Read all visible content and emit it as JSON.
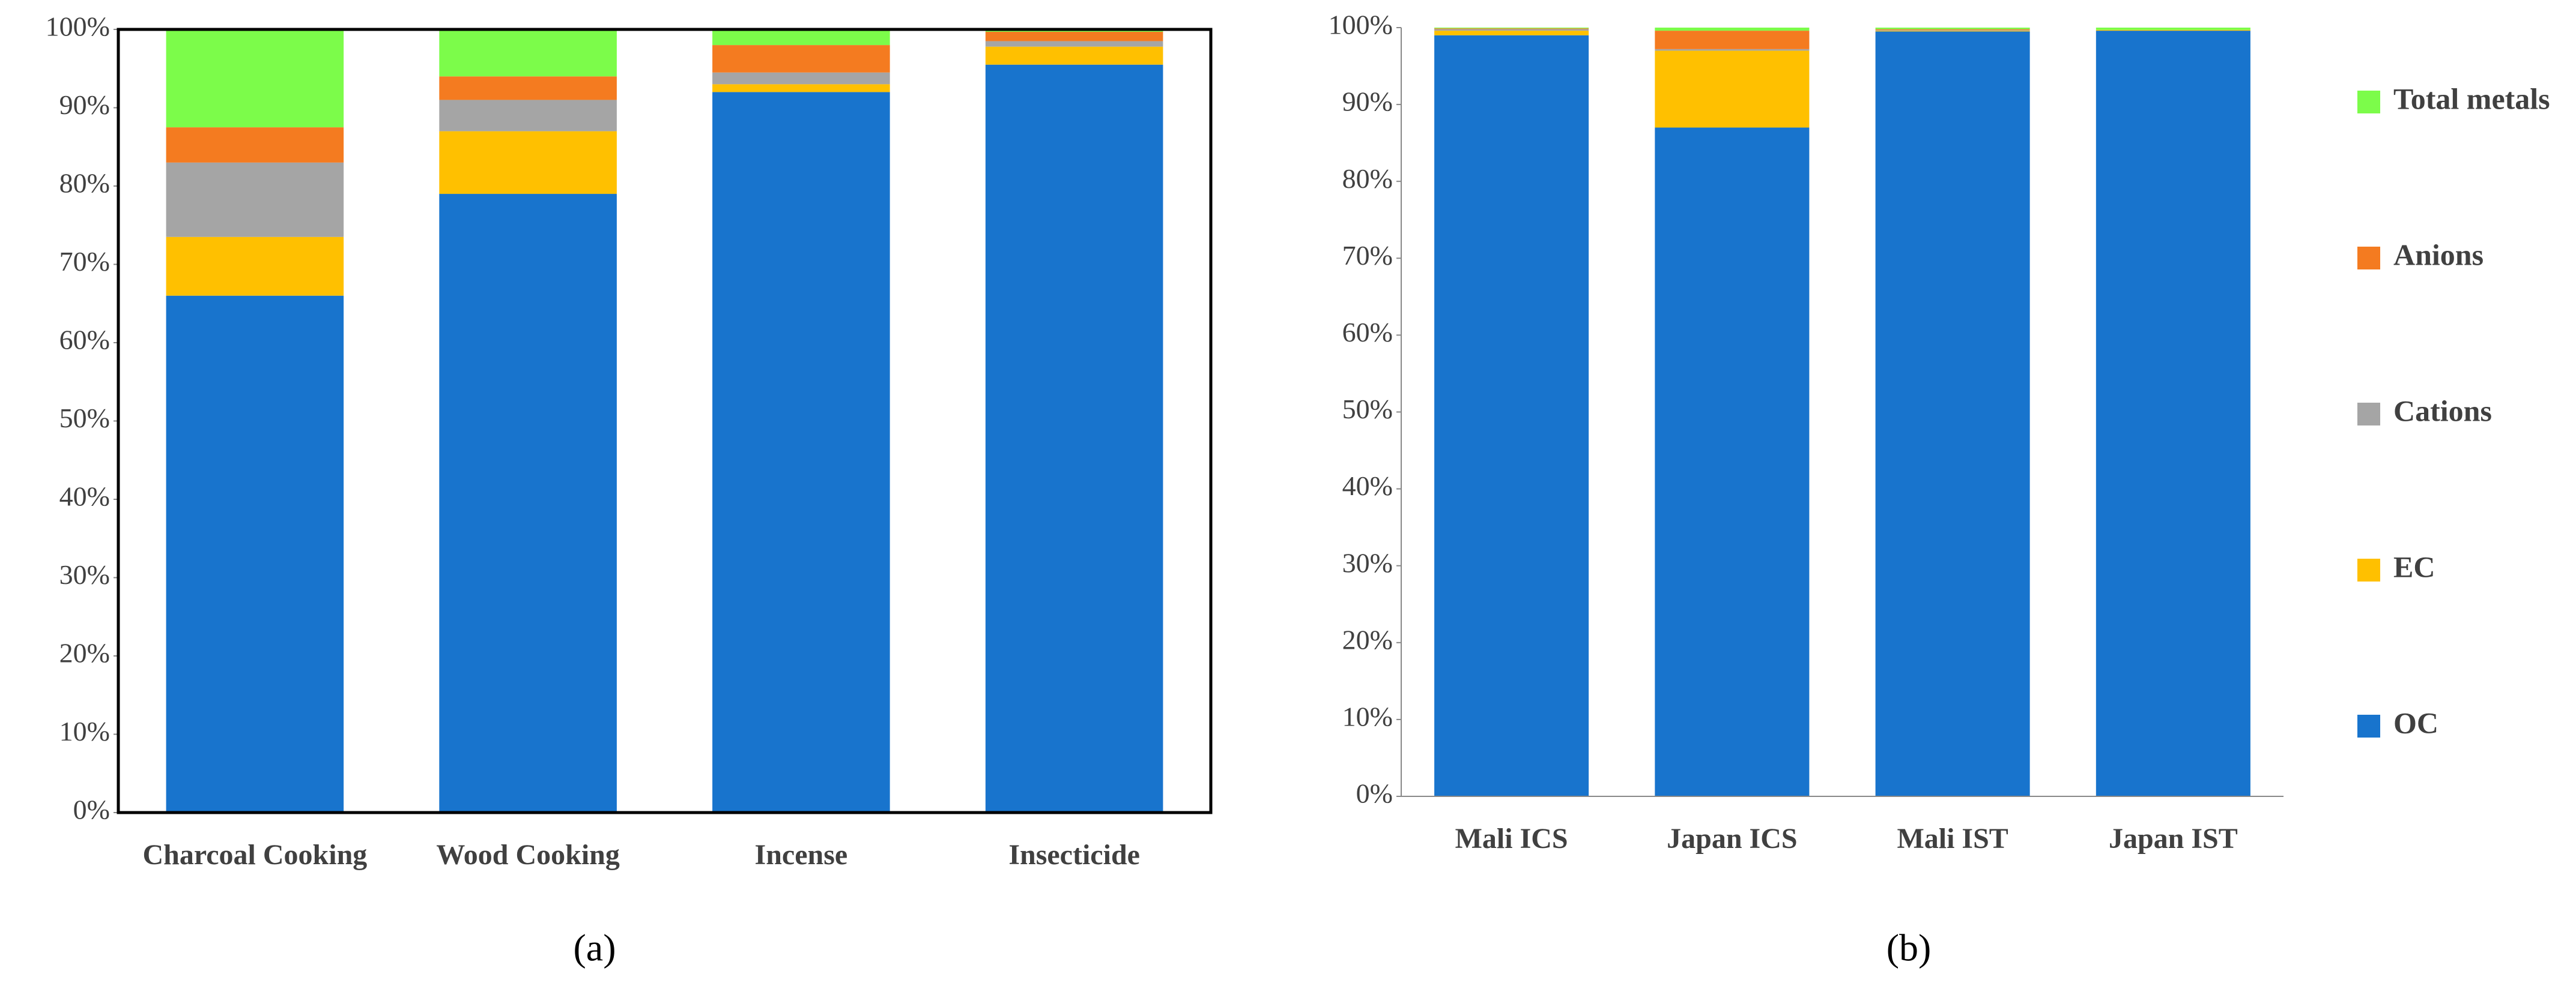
{
  "chart_data": [
    {
      "type": "stacked_bar",
      "caption": "(a)",
      "frame": true,
      "legend": false,
      "categories": [
        "Charcoal Cooking",
        "Wood Cooking",
        "Incense",
        "Insecticide"
      ],
      "series": [
        {
          "name": "OC",
          "color": "#1874cd",
          "values": [
            66,
            79,
            92,
            95.5
          ]
        },
        {
          "name": "EC",
          "color": "#ffc000",
          "values": [
            7.5,
            8,
            1,
            2.3
          ]
        },
        {
          "name": "Cations",
          "color": "#a5a5a5",
          "values": [
            9.5,
            4,
            1.5,
            0.7
          ]
        },
        {
          "name": "Anions",
          "color": "#f47b20",
          "values": [
            4.5,
            3,
            3.5,
            1.2
          ]
        },
        {
          "name": "Total metals",
          "color": "#7cfc4a",
          "values": [
            12.5,
            6,
            2,
            0.3
          ]
        }
      ],
      "ylim": [
        0,
        100
      ],
      "yticks": [
        {
          "value": 0,
          "label": "0%"
        },
        {
          "value": 10,
          "label": "10%"
        },
        {
          "value": 20,
          "label": "20%"
        },
        {
          "value": 30,
          "label": "30%"
        },
        {
          "value": 40,
          "label": "40%"
        },
        {
          "value": 50,
          "label": "50%"
        },
        {
          "value": 60,
          "label": "60%"
        },
        {
          "value": 70,
          "label": "70%"
        },
        {
          "value": 80,
          "label": "80%"
        },
        {
          "value": 90,
          "label": "90%"
        },
        {
          "value": 100,
          "label": "100%"
        }
      ]
    },
    {
      "type": "stacked_bar",
      "caption": "(b)",
      "frame": false,
      "legend": "right",
      "categories": [
        "Mali ICS",
        "Japan ICS",
        "Mali IST",
        "Japan IST"
      ],
      "series": [
        {
          "name": "OC",
          "color": "#1874cd",
          "values": [
            99,
            87,
            99.5,
            99.6
          ]
        },
        {
          "name": "EC",
          "color": "#ffc000",
          "values": [
            0.6,
            10,
            0.1,
            0.1
          ]
        },
        {
          "name": "Cations",
          "color": "#a5a5a5",
          "values": [
            0.2,
            0.2,
            0.1,
            0
          ]
        },
        {
          "name": "Anions",
          "color": "#f47b20",
          "values": [
            0.1,
            2.4,
            0.1,
            0
          ]
        },
        {
          "name": "Total metals",
          "color": "#7cfc4a",
          "values": [
            0.1,
            0.4,
            0.2,
            0.3
          ]
        }
      ],
      "ylim": [
        0,
        100
      ],
      "yticks": [
        {
          "value": 0,
          "label": "0%"
        },
        {
          "value": 10,
          "label": "10%"
        },
        {
          "value": 20,
          "label": "20%"
        },
        {
          "value": 30,
          "label": "30%"
        },
        {
          "value": 40,
          "label": "40%"
        },
        {
          "value": 50,
          "label": "50%"
        },
        {
          "value": 60,
          "label": "60%"
        },
        {
          "value": 70,
          "label": "70%"
        },
        {
          "value": 80,
          "label": "80%"
        },
        {
          "value": 90,
          "label": "90%"
        },
        {
          "value": 100,
          "label": "100%"
        }
      ]
    }
  ]
}
